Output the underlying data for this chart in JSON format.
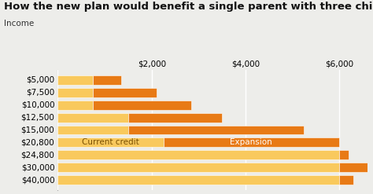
{
  "title": "How the new plan would benefit a single parent with three children",
  "income_labels": [
    "$5,000",
    "$7,500",
    "$10,000",
    "$12,500",
    "$15,000",
    "$20,800",
    "$24,800",
    "$30,000",
    "$40,000"
  ],
  "x_ticks": [
    0,
    2000,
    4000,
    6000
  ],
  "x_tick_labels": [
    "",
    "$2,000",
    "$4,000",
    "$6,000"
  ],
  "xlim": [
    0,
    6600
  ],
  "xlabel": "Income",
  "current_credit": [
    750,
    750,
    750,
    1500,
    1500,
    2250,
    6000,
    6000,
    6000
  ],
  "expansion": [
    600,
    1350,
    2100,
    2000,
    3750,
    3750,
    200,
    800,
    300
  ],
  "color_current": "#F9C95D",
  "color_expansion": "#E87A15",
  "bg_color": "#EDEDEA",
  "grid_color": "#FFFFFF",
  "spine_color": "#AAAAAA",
  "title_fontsize": 9.5,
  "label_fontsize": 7.5,
  "tick_fontsize": 7.5,
  "bar_height": 0.75,
  "bar_label_color_current": "#7A5000",
  "bar_label_color_expansion": "#FFFFFF",
  "bar_label_fontsize": 7.5
}
